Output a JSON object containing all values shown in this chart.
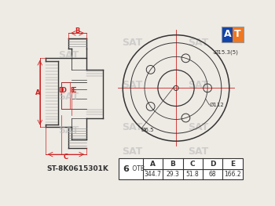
{
  "bg_color": "#eeeae4",
  "line_color": "#444444",
  "red_line_color": "#cc2222",
  "dark_line": "#333333",
  "part_code": "ST-8K0615301K",
  "bolt_count": "6",
  "bolt_label": "ОТВ.",
  "table_headers": [
    "A",
    "B",
    "C",
    "D",
    "E"
  ],
  "table_values": [
    "344.7",
    "29.3",
    "51.8",
    "68",
    "166.2"
  ],
  "annotations": {
    "d153": "Ø15.3(5)",
    "d112": "Ø112",
    "d65": "Ø6.5"
  },
  "logo_colors": {
    "orange": "#ee7722",
    "blue": "#1144aa",
    "white": "#ffffff"
  },
  "watermark": "SAT"
}
